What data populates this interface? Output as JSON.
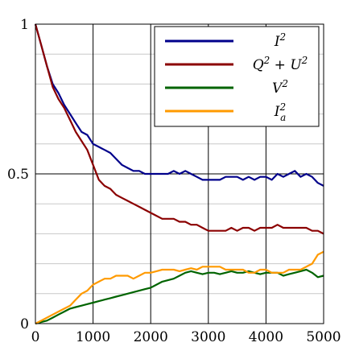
{
  "chart_data": {
    "type": "line",
    "title": "",
    "xlabel": "",
    "ylabel": "",
    "xlim": [
      0,
      5000
    ],
    "ylim": [
      0,
      1
    ],
    "grid": true,
    "legend_position": "top-right",
    "x_ticks": [
      0,
      1000,
      2000,
      3000,
      4000,
      5000
    ],
    "x_tick_labels": [
      "0",
      "1000",
      "2000",
      "3000",
      "4000",
      "5000"
    ],
    "y_ticks": [
      0,
      0.5,
      1
    ],
    "y_tick_labels": [
      "0",
      "0.5",
      "1"
    ],
    "y_minor_grid": [
      0.1,
      0.2,
      0.3,
      0.4,
      0.6,
      0.7,
      0.8,
      0.9
    ],
    "x": [
      0,
      100,
      200,
      300,
      400,
      500,
      600,
      700,
      800,
      900,
      1000,
      1100,
      1200,
      1300,
      1400,
      1500,
      1600,
      1700,
      1800,
      1900,
      2000,
      2100,
      2200,
      2300,
      2400,
      2500,
      2600,
      2700,
      2800,
      2900,
      3000,
      3100,
      3200,
      3300,
      3400,
      3500,
      3600,
      3700,
      3800,
      3900,
      4000,
      4100,
      4200,
      4300,
      4400,
      4500,
      4600,
      4700,
      4800,
      4900,
      5000
    ],
    "series": [
      {
        "name": "I^2",
        "legend_parts": {
          "base": "I",
          "sup": "2",
          "sub": ""
        },
        "color": "#00008b",
        "values": [
          1.0,
          0.93,
          0.86,
          0.8,
          0.77,
          0.73,
          0.7,
          0.67,
          0.64,
          0.63,
          0.6,
          0.59,
          0.58,
          0.57,
          0.55,
          0.53,
          0.52,
          0.51,
          0.51,
          0.5,
          0.5,
          0.5,
          0.5,
          0.5,
          0.51,
          0.5,
          0.51,
          0.5,
          0.49,
          0.48,
          0.48,
          0.48,
          0.48,
          0.49,
          0.49,
          0.49,
          0.48,
          0.49,
          0.48,
          0.49,
          0.49,
          0.48,
          0.5,
          0.49,
          0.5,
          0.51,
          0.49,
          0.5,
          0.49,
          0.47,
          0.46
        ]
      },
      {
        "name": "Q^2+U^2",
        "legend_parts": {
          "base": "Q",
          "sup": "2",
          "sub": "",
          "mid": " + U",
          "sup2": "2"
        },
        "color": "#8b0000",
        "values": [
          1.0,
          0.93,
          0.86,
          0.79,
          0.75,
          0.72,
          0.68,
          0.64,
          0.61,
          0.58,
          0.53,
          0.48,
          0.46,
          0.45,
          0.43,
          0.42,
          0.41,
          0.4,
          0.39,
          0.38,
          0.37,
          0.36,
          0.35,
          0.35,
          0.35,
          0.34,
          0.34,
          0.33,
          0.33,
          0.32,
          0.31,
          0.31,
          0.31,
          0.31,
          0.32,
          0.31,
          0.32,
          0.32,
          0.31,
          0.32,
          0.32,
          0.32,
          0.33,
          0.32,
          0.32,
          0.32,
          0.32,
          0.32,
          0.31,
          0.31,
          0.3
        ]
      },
      {
        "name": "V^2",
        "legend_parts": {
          "base": "V",
          "sup": "2",
          "sub": ""
        },
        "color": "#006400",
        "values": [
          0.0,
          0.005,
          0.01,
          0.02,
          0.03,
          0.04,
          0.05,
          0.055,
          0.06,
          0.065,
          0.07,
          0.075,
          0.08,
          0.085,
          0.09,
          0.095,
          0.1,
          0.105,
          0.11,
          0.115,
          0.12,
          0.13,
          0.14,
          0.145,
          0.15,
          0.16,
          0.17,
          0.175,
          0.17,
          0.165,
          0.17,
          0.17,
          0.165,
          0.17,
          0.175,
          0.17,
          0.17,
          0.175,
          0.17,
          0.165,
          0.17,
          0.17,
          0.17,
          0.16,
          0.165,
          0.17,
          0.175,
          0.18,
          0.17,
          0.155,
          0.16
        ]
      },
      {
        "name": "I_a^2",
        "legend_parts": {
          "base": "I",
          "sup": "2",
          "sub": "a"
        },
        "color": "#ff9a00",
        "values": [
          0.0,
          0.01,
          0.02,
          0.03,
          0.04,
          0.05,
          0.06,
          0.08,
          0.1,
          0.11,
          0.13,
          0.14,
          0.15,
          0.15,
          0.16,
          0.16,
          0.16,
          0.15,
          0.16,
          0.17,
          0.17,
          0.175,
          0.18,
          0.18,
          0.18,
          0.175,
          0.18,
          0.185,
          0.18,
          0.19,
          0.19,
          0.19,
          0.19,
          0.18,
          0.18,
          0.18,
          0.18,
          0.17,
          0.17,
          0.18,
          0.18,
          0.17,
          0.17,
          0.17,
          0.18,
          0.18,
          0.18,
          0.19,
          0.2,
          0.23,
          0.24
        ]
      }
    ]
  }
}
